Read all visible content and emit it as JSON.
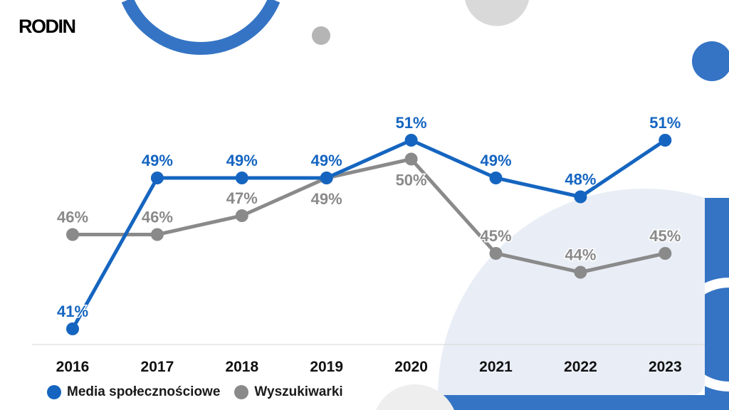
{
  "brand": {
    "logo_text": "RODIN"
  },
  "colors": {
    "media": "#1565c0",
    "search": "#8a8a8a",
    "accent": "#3574c4",
    "light": "#e9eef6"
  },
  "chart_data": {
    "type": "line",
    "categories": [
      "2016",
      "2017",
      "2018",
      "2019",
      "2020",
      "2021",
      "2022",
      "2023"
    ],
    "series": [
      {
        "name": "Media społecznościowe",
        "values": [
          41,
          49,
          49,
          49,
          51,
          49,
          48,
          51
        ],
        "labels": [
          "41%",
          "49%",
          "49%",
          "49%",
          "51%",
          "49%",
          "48%",
          "51%"
        ]
      },
      {
        "name": "Wyszukiwarki",
        "values": [
          46,
          46,
          47,
          49,
          50,
          45,
          44,
          45
        ],
        "labels": [
          "46%",
          "46%",
          "47%",
          "49%",
          "50%",
          "45%",
          "44%",
          "45%"
        ]
      }
    ],
    "grid": false,
    "legend": "bottom-left",
    "title": "",
    "xlabel": "",
    "ylabel": ""
  }
}
